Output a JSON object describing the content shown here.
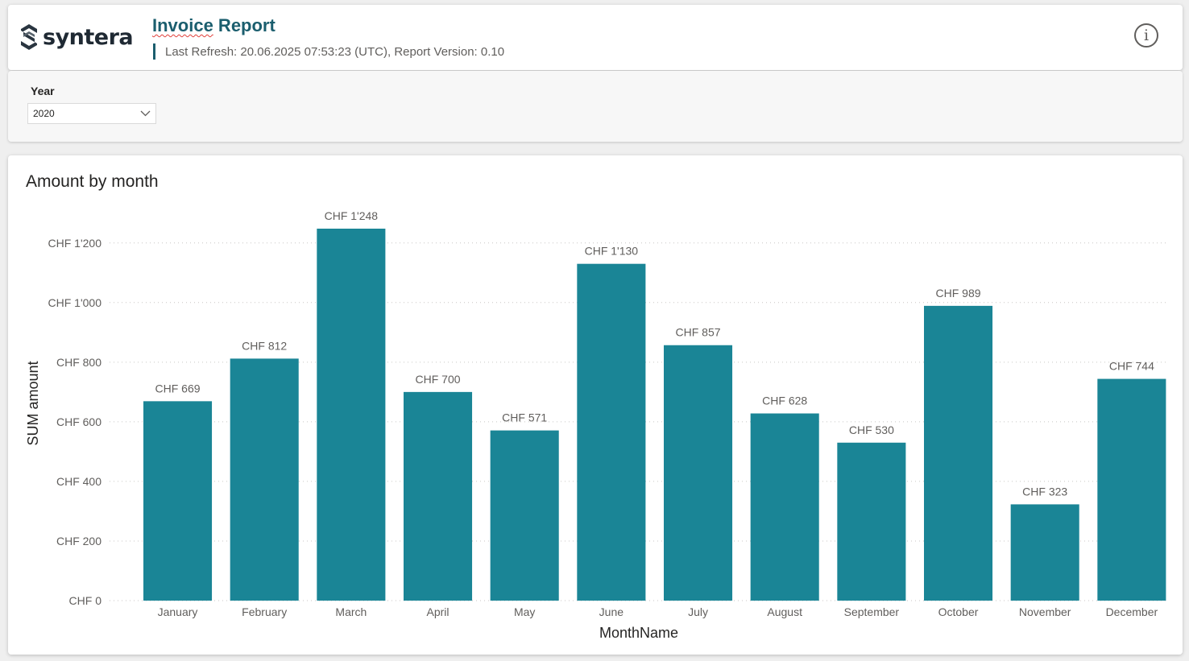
{
  "header": {
    "logo_text": "syntera",
    "title_word1": "Invoice",
    "title_word2": " Report",
    "subtitle": "Last Refresh: 20.06.2025 07:53:23 (UTC), Report Version: 0.10",
    "info_icon": "info-icon",
    "info_glyph": "i"
  },
  "filter": {
    "label": "Year",
    "selected": "2020"
  },
  "colors": {
    "accent": "#1b5e6e",
    "bar": "#1a8596"
  },
  "chart_data": {
    "type": "bar",
    "title": "Amount by month",
    "xlabel": "MonthName",
    "ylabel": "SUM amount",
    "categories": [
      "January",
      "February",
      "March",
      "April",
      "May",
      "June",
      "July",
      "August",
      "September",
      "October",
      "November",
      "December"
    ],
    "values": [
      669,
      812,
      1248,
      700,
      571,
      1130,
      857,
      628,
      530,
      989,
      323,
      744
    ],
    "data_labels": [
      "CHF 669",
      "CHF 812",
      "CHF 1'248",
      "CHF 700",
      "CHF 571",
      "CHF 1'130",
      "CHF 857",
      "CHF 628",
      "CHF 530",
      "CHF 989",
      "CHF 323",
      "CHF 744"
    ],
    "yticks": [
      0,
      200,
      400,
      600,
      800,
      1000,
      1200
    ],
    "ytick_labels": [
      "CHF 0",
      "CHF 200",
      "CHF 400",
      "CHF 600",
      "CHF 800",
      "CHF 1'000",
      "CHF 1'200"
    ],
    "ylim": [
      0,
      1248
    ],
    "grid": true,
    "legend": "none"
  }
}
